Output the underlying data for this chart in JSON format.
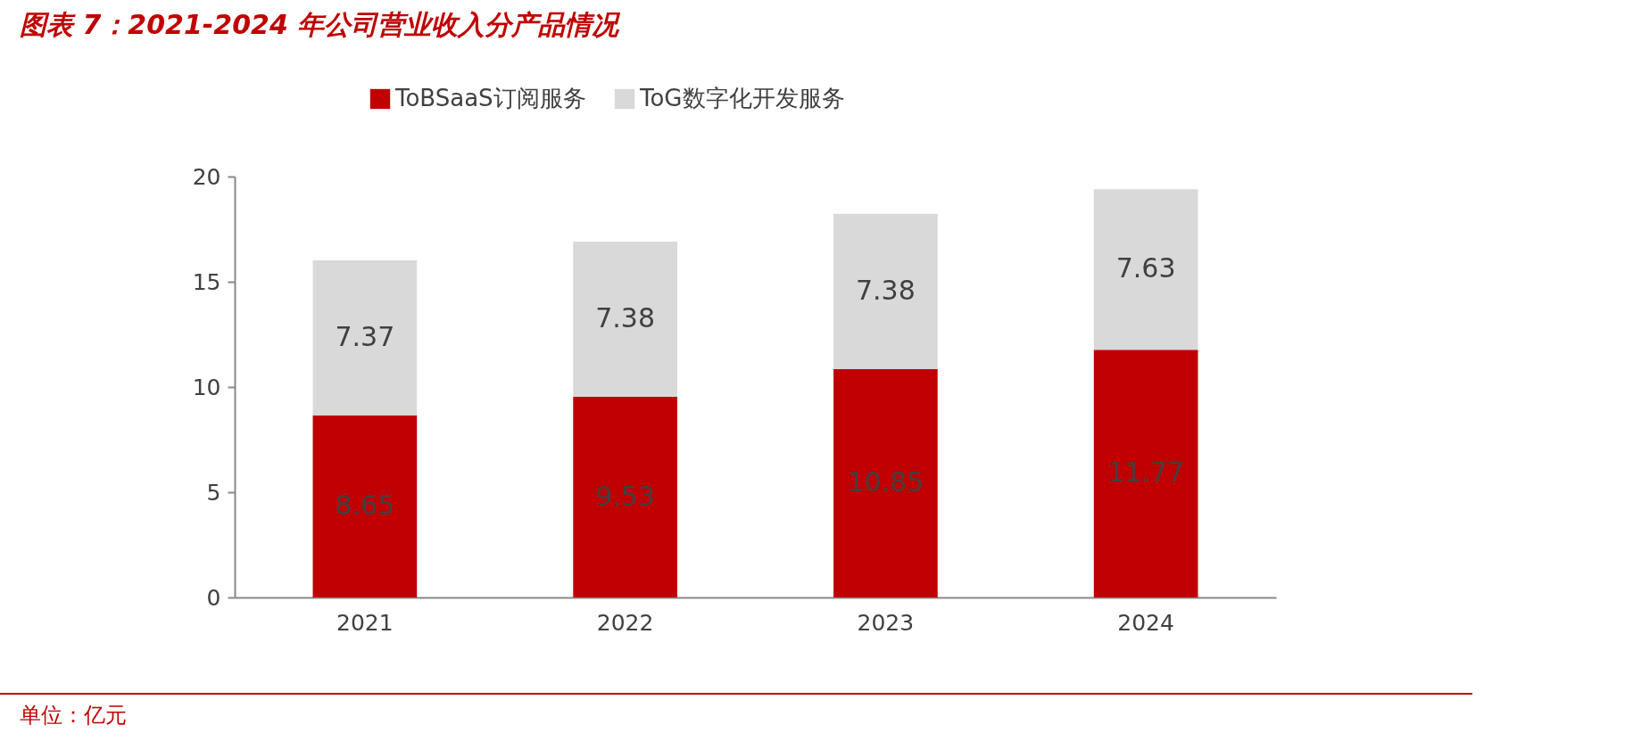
{
  "chart_data": {
    "type": "bar",
    "title": "图表 7：2021-2024 年公司营业收入分产品情况",
    "categories": [
      "2021",
      "2022",
      "2023",
      "2024"
    ],
    "stacked": true,
    "series": [
      {
        "name": "ToBSaaS订阅服务",
        "color": "#c00000",
        "values": [
          8.65,
          9.53,
          10.85,
          11.77
        ]
      },
      {
        "name": "ToG数字化开发服务",
        "color": "#d9d9d9",
        "values": [
          7.37,
          7.38,
          7.38,
          7.63
        ]
      }
    ],
    "ylim": [
      0,
      20
    ],
    "yticks": [
      0,
      5,
      10,
      15,
      20
    ],
    "data_labels": true,
    "legend": "top",
    "annotations": [
      "单位：亿元"
    ]
  }
}
